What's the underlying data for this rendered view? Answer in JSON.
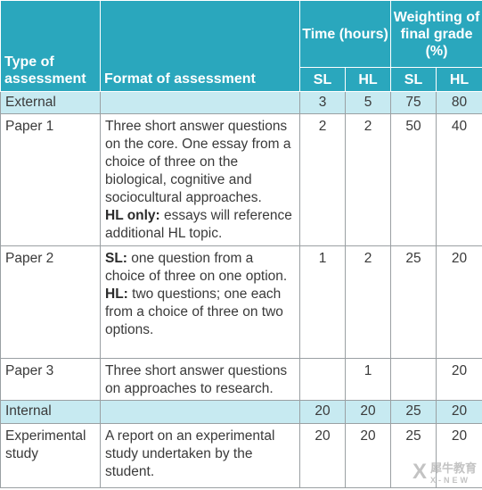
{
  "header": {
    "type": "Type of assessment",
    "format": "Format of assessment",
    "time": "Time (hours)",
    "weighting": "Weighting of final grade (%)",
    "sl": "SL",
    "hl": "HL"
  },
  "rows": [
    {
      "type": "External",
      "format": "",
      "time_sl": "3",
      "time_hl": "5",
      "w_sl": "75",
      "w_hl": "80"
    },
    {
      "type": "Paper 1",
      "format_a": "Three short answer questions on the core. One essay from a choice of three on the biological, cognitive and sociocultural approaches.",
      "format_b_label": "HL only:",
      "format_b": " essays will reference additional HL topic.",
      "time_sl": "2",
      "time_hl": "2",
      "w_sl": "50",
      "w_hl": "40"
    },
    {
      "type": "Paper 2",
      "format_a_label": "SL:",
      "format_a": " one question from a choice of three on one option.",
      "format_b_label": "HL:",
      "format_b": " two questions; one each from a choice of three on two options.",
      "time_sl": "1",
      "time_hl": "2",
      "w_sl": "25",
      "w_hl": "20"
    },
    {
      "type": "Paper 3",
      "format": "Three short answer questions on approaches to research.",
      "time_sl": "",
      "time_hl": "1",
      "w_sl": "",
      "w_hl": "20"
    },
    {
      "type": "Internal",
      "format": "",
      "time_sl": "20",
      "time_hl": "20",
      "w_sl": "25",
      "w_hl": "20"
    },
    {
      "type": "Experimental study",
      "format": "A report on an experimental study undertaken by the student.",
      "time_sl": "20",
      "time_hl": "20",
      "w_sl": "25",
      "w_hl": "20"
    }
  ],
  "watermark": {
    "mark": "X",
    "name": "犀牛教育",
    "sub": "X-NEW"
  }
}
